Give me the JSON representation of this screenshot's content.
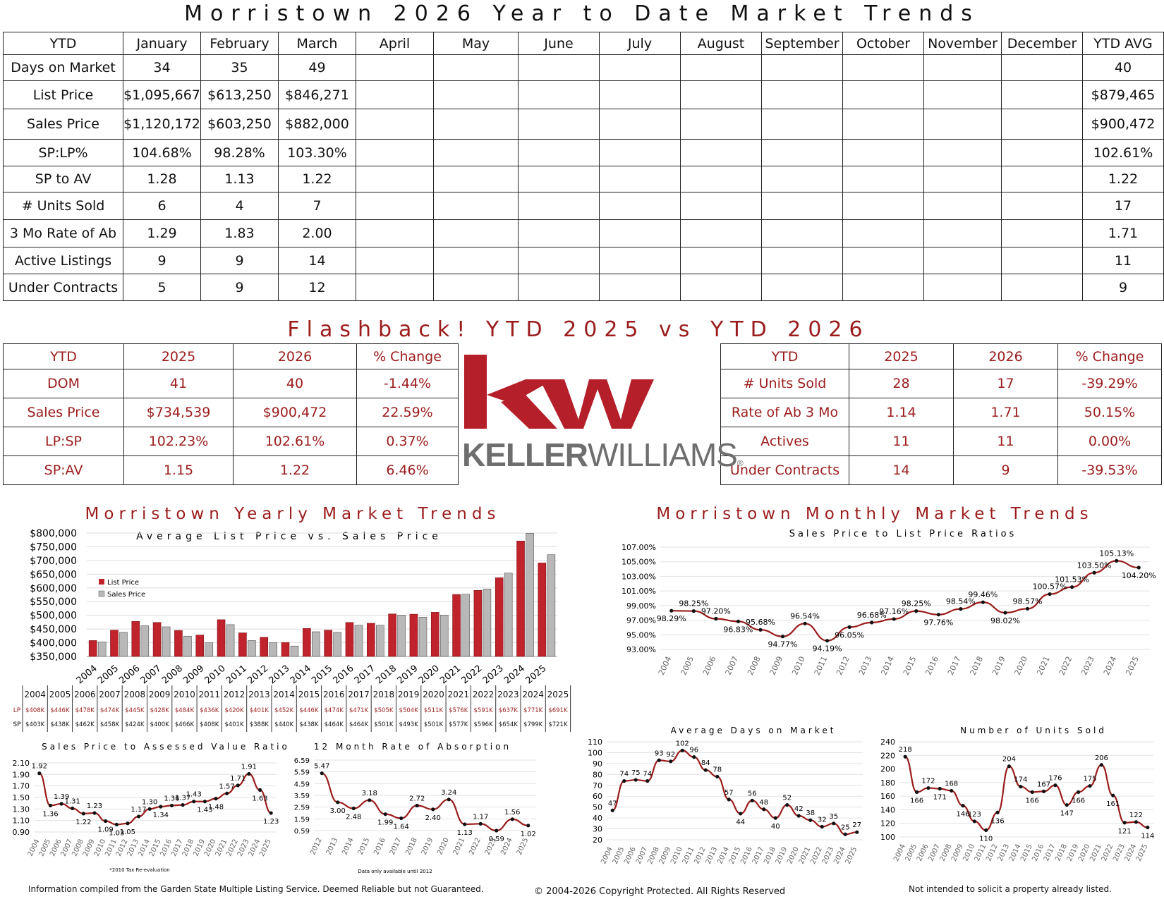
{
  "main_title": "Morristown 2026 Year to Date Market Trends",
  "ytd_table": {
    "header": [
      "YTD",
      "January",
      "February",
      "March",
      "April",
      "May",
      "June",
      "July",
      "August",
      "September",
      "October",
      "November",
      "December",
      "YTD AVG"
    ],
    "rows": [
      [
        "Days on Market",
        "34",
        "35",
        "49",
        "",
        "",
        "",
        "",
        "",
        "",
        "",
        "",
        "",
        "40"
      ],
      [
        "List Price",
        "$1,095,667",
        "$613,250",
        "$846,271",
        "",
        "",
        "",
        "",
        "",
        "",
        "",
        "",
        "",
        "$879,465"
      ],
      [
        "Sales Price",
        "$1,120,172",
        "$603,250",
        "$882,000",
        "",
        "",
        "",
        "",
        "",
        "",
        "",
        "",
        "",
        "$900,472"
      ],
      [
        "SP:LP%",
        "104.68%",
        "98.28%",
        "103.30%",
        "",
        "",
        "",
        "",
        "",
        "",
        "",
        "",
        "",
        "102.61%"
      ],
      [
        "SP to AV",
        "1.28",
        "1.13",
        "1.22",
        "",
        "",
        "",
        "",
        "",
        "",
        "",
        "",
        "",
        "1.22"
      ],
      [
        "# Units Sold",
        "6",
        "4",
        "7",
        "",
        "",
        "",
        "",
        "",
        "",
        "",
        "",
        "",
        "17"
      ],
      [
        "3 Mo Rate of Ab",
        "1.29",
        "1.83",
        "2.00",
        "",
        "",
        "",
        "",
        "",
        "",
        "",
        "",
        "",
        "1.71"
      ],
      [
        "Active Listings",
        "9",
        "9",
        "14",
        "",
        "",
        "",
        "",
        "",
        "",
        "",
        "",
        "",
        "11"
      ],
      [
        "Under Contracts",
        "5",
        "9",
        "12",
        "",
        "",
        "",
        "",
        "",
        "",
        "",
        "",
        "",
        "9"
      ]
    ]
  },
  "flashback_title": "Flashback!  YTD 2025 vs YTD 2026",
  "flash_left": {
    "header": [
      "YTD",
      "2025",
      "2026",
      "% Change"
    ],
    "rows": [
      [
        "DOM",
        "41",
        "40",
        "-1.44%"
      ],
      [
        "Sales Price",
        "$734,539",
        "$900,472",
        "22.59%"
      ],
      [
        "LP:SP",
        "102.23%",
        "102.61%",
        "0.37%"
      ],
      [
        "SP:AV",
        "1.15",
        "1.22",
        "6.46%"
      ]
    ]
  },
  "flash_right": {
    "header": [
      "YTD",
      "2025",
      "2026",
      "% Change"
    ],
    "rows": [
      [
        "# Units Sold",
        "28",
        "17",
        "-39.29%"
      ],
      [
        "Rate of Ab 3 Mo",
        "1.14",
        "1.71",
        "50.15%"
      ],
      [
        "Actives",
        "11",
        "11",
        "0.00%"
      ],
      [
        "Under Contracts",
        "14",
        "9",
        "-39.53%"
      ]
    ]
  },
  "logo": {
    "mark": "kw",
    "word1": "KELLER",
    "word2": "WILLIAMS",
    "reg": "®"
  },
  "yearly_title": "Morristown Yearly Market Trends",
  "monthly_title": "Morristown Monthly Market Trends",
  "colors": {
    "red": "#9b1c1c",
    "bar_red": "#c0232c",
    "bar_gray": "#b8b8b8",
    "line": "#9b1c1c"
  },
  "chart_data": [
    {
      "type": "bar",
      "title": "Average List Price vs. Sales Price",
      "categories": [
        "2004",
        "2005",
        "2006",
        "2007",
        "2008",
        "2009",
        "2010",
        "2011",
        "2012",
        "2013",
        "2014",
        "2015",
        "2016",
        "2017",
        "2018",
        "2019",
        "2020",
        "2021",
        "2022",
        "2023",
        "2024",
        "2025"
      ],
      "series": [
        {
          "name": "List Price",
          "values": [
            408,
            446,
            478,
            474,
            445,
            428,
            484,
            436,
            420,
            401,
            452,
            446,
            474,
            471,
            505,
            504,
            511,
            576,
            591,
            637,
            771,
            691
          ]
        },
        {
          "name": "Sales Price",
          "values": [
            403,
            438,
            462,
            458,
            424,
            400,
            466,
            408,
            401,
            388,
            440,
            438,
            464,
            464,
            501,
            493,
            501,
            577,
            596,
            654,
            799,
            721
          ]
        }
      ],
      "ylim": [
        350000,
        800000
      ],
      "yticks": [
        "$800,000",
        "$750,000",
        "$700,000",
        "$650,000",
        "$600,000",
        "$550,000",
        "$500,000",
        "$450,000",
        "$400,000",
        "$350,000"
      ],
      "legend": "left",
      "table_rows": [
        {
          "label": "LP",
          "values": [
            "$408K",
            "$446K",
            "$478K",
            "$474K",
            "$445K",
            "$428K",
            "$484K",
            "$436K",
            "$420K",
            "$401K",
            "$452K",
            "$446K",
            "$474K",
            "$471K",
            "$505K",
            "$504K",
            "$511K",
            "$576K",
            "$591K",
            "$637K",
            "$771K",
            "$691K"
          ]
        },
        {
          "label": "SP",
          "values": [
            "$403K",
            "$438K",
            "$462K",
            "$458K",
            "$424K",
            "$400K",
            "$466K",
            "$408K",
            "$401K",
            "$388K",
            "$440K",
            "$438K",
            "$464K",
            "$464K",
            "$501K",
            "$493K",
            "$501K",
            "$577K",
            "$596K",
            "$654K",
            "$799K",
            "$721K"
          ]
        }
      ]
    },
    {
      "type": "line",
      "title": "Sales Price to List Price Ratios",
      "x": [
        "2004",
        "2005",
        "2006",
        "2007",
        "2008",
        "2009",
        "2010",
        "2011",
        "2012",
        "2013",
        "2014",
        "2015",
        "2016",
        "2017",
        "2018",
        "2019",
        "2020",
        "2021",
        "2022",
        "2023",
        "2024",
        "2025"
      ],
      "values": [
        98.29,
        98.25,
        97.2,
        96.83,
        95.68,
        94.77,
        96.54,
        94.19,
        96.05,
        96.68,
        97.16,
        98.25,
        97.76,
        98.54,
        99.46,
        98.02,
        98.57,
        100.57,
        101.53,
        103.5,
        105.13,
        104.2
      ],
      "labels": [
        "98.29%",
        "98.25%",
        "97.20%",
        "96.83%",
        "95.68%",
        "94.77%",
        "96.54%",
        "94.19%",
        "96.05%",
        "96.68%",
        "97.16%",
        "98.25%",
        "97.76%",
        "98.54%",
        "99.46%",
        "98.02%",
        "98.57%",
        "100.57%",
        "101.53%",
        "103.50%",
        "105.13%",
        "104.20%"
      ],
      "ylim": [
        93,
        107
      ],
      "yticks": [
        "107.00%",
        "105.00%",
        "103.00%",
        "101.00%",
        "99.00%",
        "97.00%",
        "95.00%",
        "93.00%"
      ]
    },
    {
      "type": "line",
      "title": "Sales Price to Assessed Value Ratio",
      "x": [
        "2004",
        "2005",
        "2006",
        "2007",
        "2008",
        "2009",
        "2010",
        "2011",
        "2012",
        "2013",
        "2014",
        "2015",
        "2016",
        "2017",
        "2018",
        "2019",
        "2020",
        "2021",
        "2022",
        "2023",
        "2024",
        "2025"
      ],
      "values": [
        1.92,
        1.36,
        1.39,
        1.31,
        1.22,
        1.23,
        1.09,
        1.03,
        1.05,
        1.17,
        1.3,
        1.34,
        1.36,
        1.37,
        1.43,
        1.43,
        1.48,
        1.57,
        1.71,
        1.91,
        1.63,
        1.23
      ],
      "labels": [
        "1.92",
        "1.36",
        "1.39",
        "1.31",
        "1.22",
        "1.23",
        "1.09",
        "1.03",
        "1.05",
        "1.17",
        "1.30",
        "1.34",
        "1.36",
        "1.37",
        "1.43",
        "1.43",
        "1.48",
        "1.57",
        "1.71",
        "1.91",
        "1.63",
        "1.23"
      ],
      "ylim": [
        0.9,
        2.1
      ],
      "yticks": [
        "2.10",
        "1.90",
        "1.70",
        "1.50",
        "1.30",
        "1.10",
        "0.90"
      ],
      "note": "*2010 Tax Re-evaluation"
    },
    {
      "type": "line",
      "title": "12 Month Rate of Absorption",
      "x": [
        "2012",
        "2013",
        "2014",
        "2015",
        "2016",
        "2017",
        "2018",
        "2019",
        "2020",
        "2021",
        "2022",
        "2023",
        "2024",
        "2025"
      ],
      "values": [
        5.47,
        3.0,
        2.48,
        3.18,
        1.99,
        1.64,
        2.72,
        2.4,
        3.24,
        1.13,
        1.17,
        0.59,
        1.56,
        1.02
      ],
      "labels": [
        "5.47",
        "3.00",
        "2.48",
        "3.18",
        "1.99",
        "1.64",
        "2.72",
        "2.40",
        "3.24",
        "1.13",
        "1.17",
        "0.59",
        "1.56",
        "1.02"
      ],
      "ylim": [
        0.59,
        6.59
      ],
      "yticks": [
        "6.59",
        "5.59",
        "4.59",
        "3.59",
        "2.59",
        "1.59",
        "0.59"
      ],
      "note": "Data only available until 2012"
    },
    {
      "type": "line",
      "title": "Average Days on Market",
      "x": [
        "2004",
        "2005",
        "2006",
        "2007",
        "2008",
        "2009",
        "2010",
        "2011",
        "2012",
        "2013",
        "2014",
        "2015",
        "2016",
        "2017",
        "2018",
        "2019",
        "2020",
        "2021",
        "2022",
        "2023",
        "2024",
        "2025"
      ],
      "values": [
        47,
        74,
        75,
        74,
        93,
        92,
        102,
        96,
        84,
        78,
        57,
        44,
        56,
        48,
        40,
        52,
        42,
        38,
        32,
        35,
        25,
        27
      ],
      "labels": [
        "47",
        "74",
        "75",
        "74",
        "93",
        "92",
        "102",
        "96",
        "84",
        "78",
        "57",
        "44",
        "56",
        "48",
        "40",
        "52",
        "42",
        "38",
        "32",
        "35",
        "25",
        "27"
      ],
      "ylim": [
        20,
        110
      ],
      "yticks": [
        "110",
        "100",
        "90",
        "80",
        "70",
        "60",
        "50",
        "40",
        "30",
        "20"
      ]
    },
    {
      "type": "line",
      "title": "Number of Units Sold",
      "x": [
        "2004",
        "2005",
        "2006",
        "2007",
        "2008",
        "2009",
        "2010",
        "2011",
        "2012",
        "2013",
        "2014",
        "2015",
        "2016",
        "2017",
        "2018",
        "2019",
        "2020",
        "2021",
        "2022",
        "2023",
        "2024",
        "2025"
      ],
      "values": [
        218,
        166,
        172,
        171,
        168,
        146,
        123,
        110,
        136,
        204,
        174,
        166,
        167,
        176,
        147,
        166,
        175,
        206,
        161,
        121,
        122,
        114
      ],
      "labels": [
        "218",
        "166",
        "172",
        "171",
        "168",
        "146",
        "123",
        "110",
        "136",
        "204",
        "174",
        "166",
        "167",
        "176",
        "147",
        "166",
        "175",
        "206",
        "161",
        "121",
        "122",
        "114"
      ],
      "ylim": [
        100,
        240
      ],
      "yticks": [
        "240",
        "220",
        "200",
        "180",
        "160",
        "140",
        "120",
        "100"
      ]
    }
  ],
  "footer": {
    "left": "Information compiled from the Garden State Multiple Listing Service.  Deemed Reliable but not Guaranteed.",
    "center": "© 2004-2026 Copyright Protected.  All Rights Reserved",
    "right": "Not intended to solicit a property already listed."
  }
}
